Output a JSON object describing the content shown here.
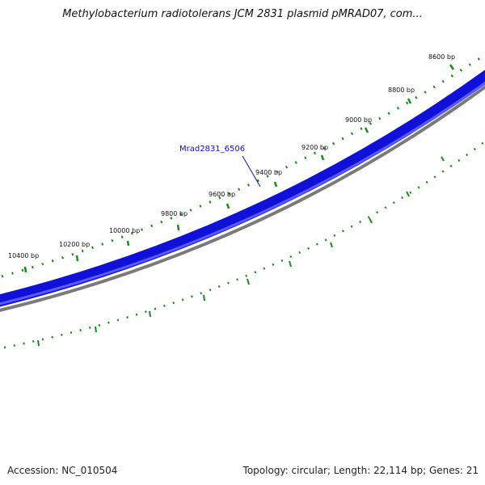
{
  "title": "Methylobacterium radiotolerans JCM 2831 plasmid pMRAD07, com...",
  "footer": {
    "accession": "Accession: NC_010504",
    "summary": "Topology: circular; Length: 22,114 bp; Genes: 21"
  },
  "gene_label": "Mrad2831_6506",
  "bp_labels": [
    "8600 bp",
    "8800 bp",
    "9000 bp",
    "9200 bp",
    "9400 bp",
    "9600 bp",
    "9800 bp",
    "10000 bp",
    "10200 bp",
    "10400 bp"
  ],
  "colors": {
    "gene_track": "#1f1fe6",
    "gene_track_dark": "#0000b0",
    "backbone": "#808080",
    "tick_green": "#1a8a1a",
    "gene_label": "#1010c0"
  }
}
